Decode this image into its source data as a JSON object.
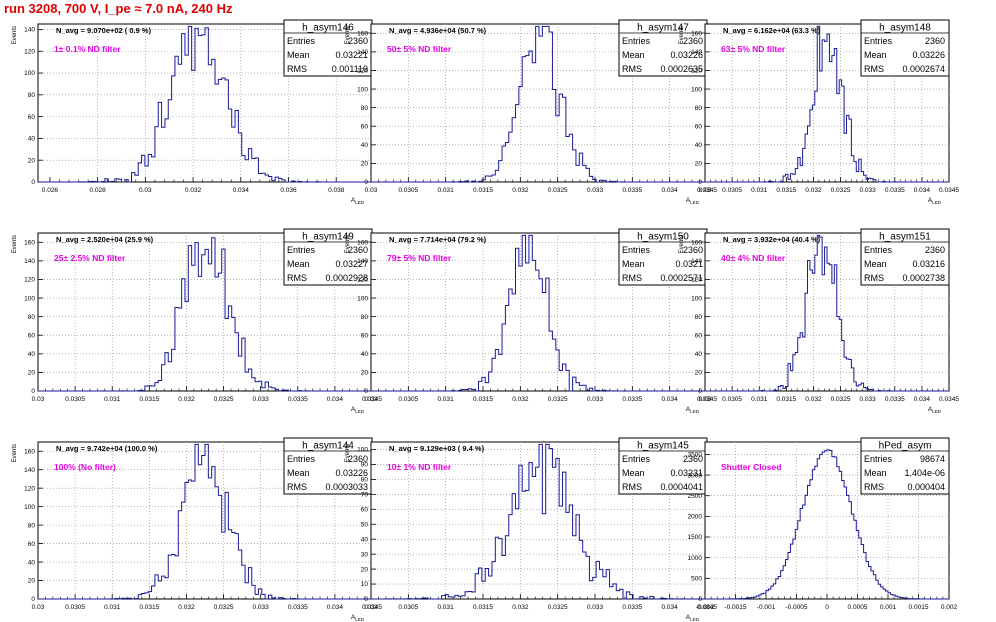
{
  "title": "run 3208,   700 V, I_pe ≈ 7.0 nA, 240 Hz",
  "stat_labels": {
    "entries": "Entries",
    "mean": "Mean",
    "rms": "RMS"
  },
  "chart_data": [
    {
      "type": "histogram",
      "name": "h_asym146",
      "navg": "N_avg = 9.070e+02 ( 0.9 %)",
      "filter": "1± 0.1% ND filter",
      "entries": "2360",
      "mean": "0.03221",
      "rms": "0.001119",
      "xlim": [
        0.0255,
        0.0395
      ],
      "ylim": [
        0,
        145
      ],
      "xticks": [
        0.026,
        0.028,
        0.03,
        0.032,
        0.034,
        0.036,
        0.038
      ],
      "xtick_labels": [
        "0.026",
        "0.028",
        "0.03",
        "0.032",
        "0.034",
        "0.036",
        "0.038"
      ],
      "yticks": [
        0,
        20,
        40,
        60,
        80,
        100,
        120,
        140
      ],
      "ytick_labels": [
        "0",
        "20",
        "40",
        "60",
        "80",
        "100",
        "120",
        "140"
      ],
      "xlabel": "A_LED",
      "ylabel": "Events",
      "grid": true,
      "mean_value": 0.03221,
      "sigma": 0.001119,
      "peak": 140
    },
    {
      "type": "histogram",
      "name": "h_asym147",
      "navg": "N_avg = 4.936e+04 (50.7 %)",
      "filter": "50± 5% ND filter",
      "entries": "2360",
      "mean": "0.03226",
      "rms": "0.0002635",
      "xlim": [
        0.03,
        0.0345
      ],
      "ylim": [
        0,
        170
      ],
      "xticks": [
        0.03,
        0.0305,
        0.031,
        0.0315,
        0.032,
        0.0325,
        0.033,
        0.0335,
        0.034,
        0.0345
      ],
      "xtick_labels": [
        "0.03",
        "0.0305",
        "0.031",
        "0.0315",
        "0.032",
        "0.0325",
        "0.033",
        "0.0335",
        "0.034",
        "0.0345"
      ],
      "yticks": [
        0,
        20,
        40,
        60,
        80,
        100,
        120,
        140,
        160
      ],
      "ytick_labels": [
        "0",
        "20",
        "40",
        "60",
        "80",
        "100",
        "120",
        "140",
        "160"
      ],
      "xlabel": "A_LED",
      "ylabel": "Events",
      "grid": true,
      "mean_value": 0.03226,
      "sigma": 0.0002635,
      "peak": 160
    },
    {
      "type": "histogram",
      "name": "h_asym148",
      "navg": "N_avg = 6.162e+04 (63.3 %)",
      "filter": "63± 5% ND filter",
      "entries": "2360",
      "mean": "0.03226",
      "rms": "0.0002674",
      "xlim": [
        0.03,
        0.0345
      ],
      "ylim": [
        0,
        170
      ],
      "xticks": [
        0.03,
        0.0305,
        0.031,
        0.0315,
        0.032,
        0.0325,
        0.033,
        0.0335,
        0.034,
        0.0345
      ],
      "xtick_labels": [
        "0.03",
        "0.0305",
        "0.031",
        "0.0315",
        "0.032",
        "0.0325",
        "0.033",
        "0.0335",
        "0.034",
        "0.0345"
      ],
      "yticks": [
        0,
        20,
        40,
        60,
        80,
        100,
        120,
        140,
        160
      ],
      "ytick_labels": [
        "0",
        "20",
        "40",
        "60",
        "80",
        "100",
        "120",
        "140",
        "160"
      ],
      "xlabel": "A_LED",
      "ylabel": "Events",
      "grid": true,
      "mean_value": 0.03226,
      "sigma": 0.0002674,
      "peak": 160
    },
    {
      "type": "histogram",
      "name": "h_asym149",
      "navg": "N_avg = 2.520e+04 (25.9 %)",
      "filter": "25± 2.5% ND filter",
      "entries": "2360",
      "mean": "0.03227",
      "rms": "0.0002928",
      "xlim": [
        0.03,
        0.0345
      ],
      "ylim": [
        0,
        170
      ],
      "xticks": [
        0.03,
        0.0305,
        0.031,
        0.0315,
        0.032,
        0.0325,
        0.033,
        0.0335,
        0.034,
        0.0345
      ],
      "xtick_labels": [
        "0.03",
        "0.0305",
        "0.031",
        "0.0315",
        "0.032",
        "0.0325",
        "0.033",
        "0.0335",
        "0.034",
        "0.0345"
      ],
      "yticks": [
        0,
        20,
        40,
        60,
        80,
        100,
        120,
        140,
        160
      ],
      "ytick_labels": [
        "0",
        "20",
        "40",
        "60",
        "80",
        "100",
        "120",
        "140",
        "160"
      ],
      "xlabel": "A_LED",
      "ylabel": "Events",
      "grid": true,
      "mean_value": 0.03227,
      "sigma": 0.0002928,
      "peak": 160
    },
    {
      "type": "histogram",
      "name": "h_asym150",
      "navg": "N_avg = 7.714e+04 (79.2 %)",
      "filter": "79± 5% ND filter",
      "entries": "2360",
      "mean": "0.0321",
      "rms": "0.0002571",
      "xlim": [
        0.03,
        0.0345
      ],
      "ylim": [
        0,
        170
      ],
      "xticks": [
        0.03,
        0.0305,
        0.031,
        0.0315,
        0.032,
        0.0325,
        0.033,
        0.0335,
        0.034,
        0.0345
      ],
      "xtick_labels": [
        "0.03",
        "0.0305",
        "0.031",
        "0.0315",
        "0.032",
        "0.0325",
        "0.033",
        "0.0335",
        "0.034",
        "0.0345"
      ],
      "yticks": [
        0,
        20,
        40,
        60,
        80,
        100,
        120,
        140,
        160
      ],
      "ytick_labels": [
        "0",
        "20",
        "40",
        "60",
        "80",
        "100",
        "120",
        "140",
        "160"
      ],
      "xlabel": "A_LED",
      "ylabel": "Events",
      "grid": true,
      "mean_value": 0.0321,
      "sigma": 0.0002571,
      "peak": 160
    },
    {
      "type": "histogram",
      "name": "h_asym151",
      "navg": "N_avg = 3.932e+04 (40.4 %)",
      "filter": "40± 4% ND filter",
      "entries": "2360",
      "mean": "0.03216",
      "rms": "0.0002738",
      "xlim": [
        0.03,
        0.0345
      ],
      "ylim": [
        0,
        170
      ],
      "xticks": [
        0.03,
        0.0305,
        0.031,
        0.0315,
        0.032,
        0.0325,
        0.033,
        0.0335,
        0.034,
        0.0345
      ],
      "xtick_labels": [
        "0.03",
        "0.0305",
        "0.031",
        "0.0315",
        "0.032",
        "0.0325",
        "0.033",
        "0.0335",
        "0.034",
        "0.0345"
      ],
      "yticks": [
        0,
        20,
        40,
        60,
        80,
        100,
        120,
        140,
        160
      ],
      "ytick_labels": [
        "0",
        "20",
        "40",
        "60",
        "80",
        "100",
        "120",
        "140",
        "160"
      ],
      "xlabel": "A_LED",
      "ylabel": "Events",
      "grid": true,
      "mean_value": 0.03216,
      "sigma": 0.0002738,
      "peak": 160
    },
    {
      "type": "histogram",
      "name": "h_asym144",
      "navg": "N_avg = 9.742e+04 (100.0 %)",
      "filter": "100% (No filter)",
      "entries": "2360",
      "mean": "0.03226",
      "rms": "0.0003033",
      "xlim": [
        0.03,
        0.0345
      ],
      "ylim": [
        0,
        170
      ],
      "xticks": [
        0.03,
        0.0305,
        0.031,
        0.0315,
        0.032,
        0.0325,
        0.033,
        0.0335,
        0.034,
        0.0345
      ],
      "xtick_labels": [
        "0.03",
        "0.0305",
        "0.031",
        "0.0315",
        "0.032",
        "0.0325",
        "0.033",
        "0.0335",
        "0.034",
        "0.0345"
      ],
      "yticks": [
        0,
        20,
        40,
        60,
        80,
        100,
        120,
        140,
        160
      ],
      "ytick_labels": [
        "0",
        "20",
        "40",
        "60",
        "80",
        "100",
        "120",
        "140",
        "160"
      ],
      "xlabel": "A_LED",
      "ylabel": "Events",
      "grid": true,
      "mean_value": 0.03226,
      "sigma": 0.0003033,
      "peak": 160
    },
    {
      "type": "histogram",
      "name": "h_asym145",
      "navg": "N_avg = 9.129e+03 ( 9.4 %)",
      "filter": "10± 1% ND filter",
      "entries": "2360",
      "mean": "0.03231",
      "rms": "0.0004041",
      "xlim": [
        0.03,
        0.0345
      ],
      "ylim": [
        0,
        105
      ],
      "xticks": [
        0.03,
        0.0305,
        0.031,
        0.0315,
        0.032,
        0.0325,
        0.033,
        0.0335,
        0.034,
        0.0345
      ],
      "xtick_labels": [
        "0.03",
        "0.0305",
        "0.031",
        "0.0315",
        "0.032",
        "0.0325",
        "0.033",
        "0.0335",
        "0.034",
        "0.0345"
      ],
      "yticks": [
        0,
        10,
        20,
        30,
        40,
        50,
        60,
        70,
        80,
        90,
        100
      ],
      "ytick_labels": [
        "0",
        "10",
        "20",
        "30",
        "40",
        "50",
        "60",
        "70",
        "80",
        "90",
        "100"
      ],
      "xlabel": "A_LED",
      "ylabel": "Events",
      "grid": true,
      "mean_value": 0.03231,
      "sigma": 0.0004041,
      "peak": 100
    },
    {
      "type": "histogram",
      "name": "hPed_asym",
      "navg": "",
      "filter": "Shutter Closed",
      "entries": "98674",
      "mean": "1.404e-06",
      "rms": "0.000404",
      "xlim": [
        -0.002,
        0.002
      ],
      "ylim": [
        0,
        3800
      ],
      "xticks": [
        -0.002,
        -0.0015,
        -0.001,
        -0.0005,
        0,
        0.0005,
        0.001,
        0.0015,
        0.002
      ],
      "xtick_labels": [
        "-0.002",
        "-0.0015",
        "-0.001",
        "-0.0005",
        "0",
        "0.0005",
        "0.001",
        "0.0015",
        "0.002"
      ],
      "yticks": [
        0,
        500,
        1000,
        1500,
        2000,
        2500,
        3000,
        3500
      ],
      "ytick_labels": [
        "0",
        "500",
        "1000",
        "1500",
        "2000",
        "2500",
        "3000",
        "3500"
      ],
      "xlabel": "",
      "ylabel": "",
      "grid": true,
      "mean_value": 0.0,
      "sigma": 0.000404,
      "peak": 3600
    }
  ]
}
